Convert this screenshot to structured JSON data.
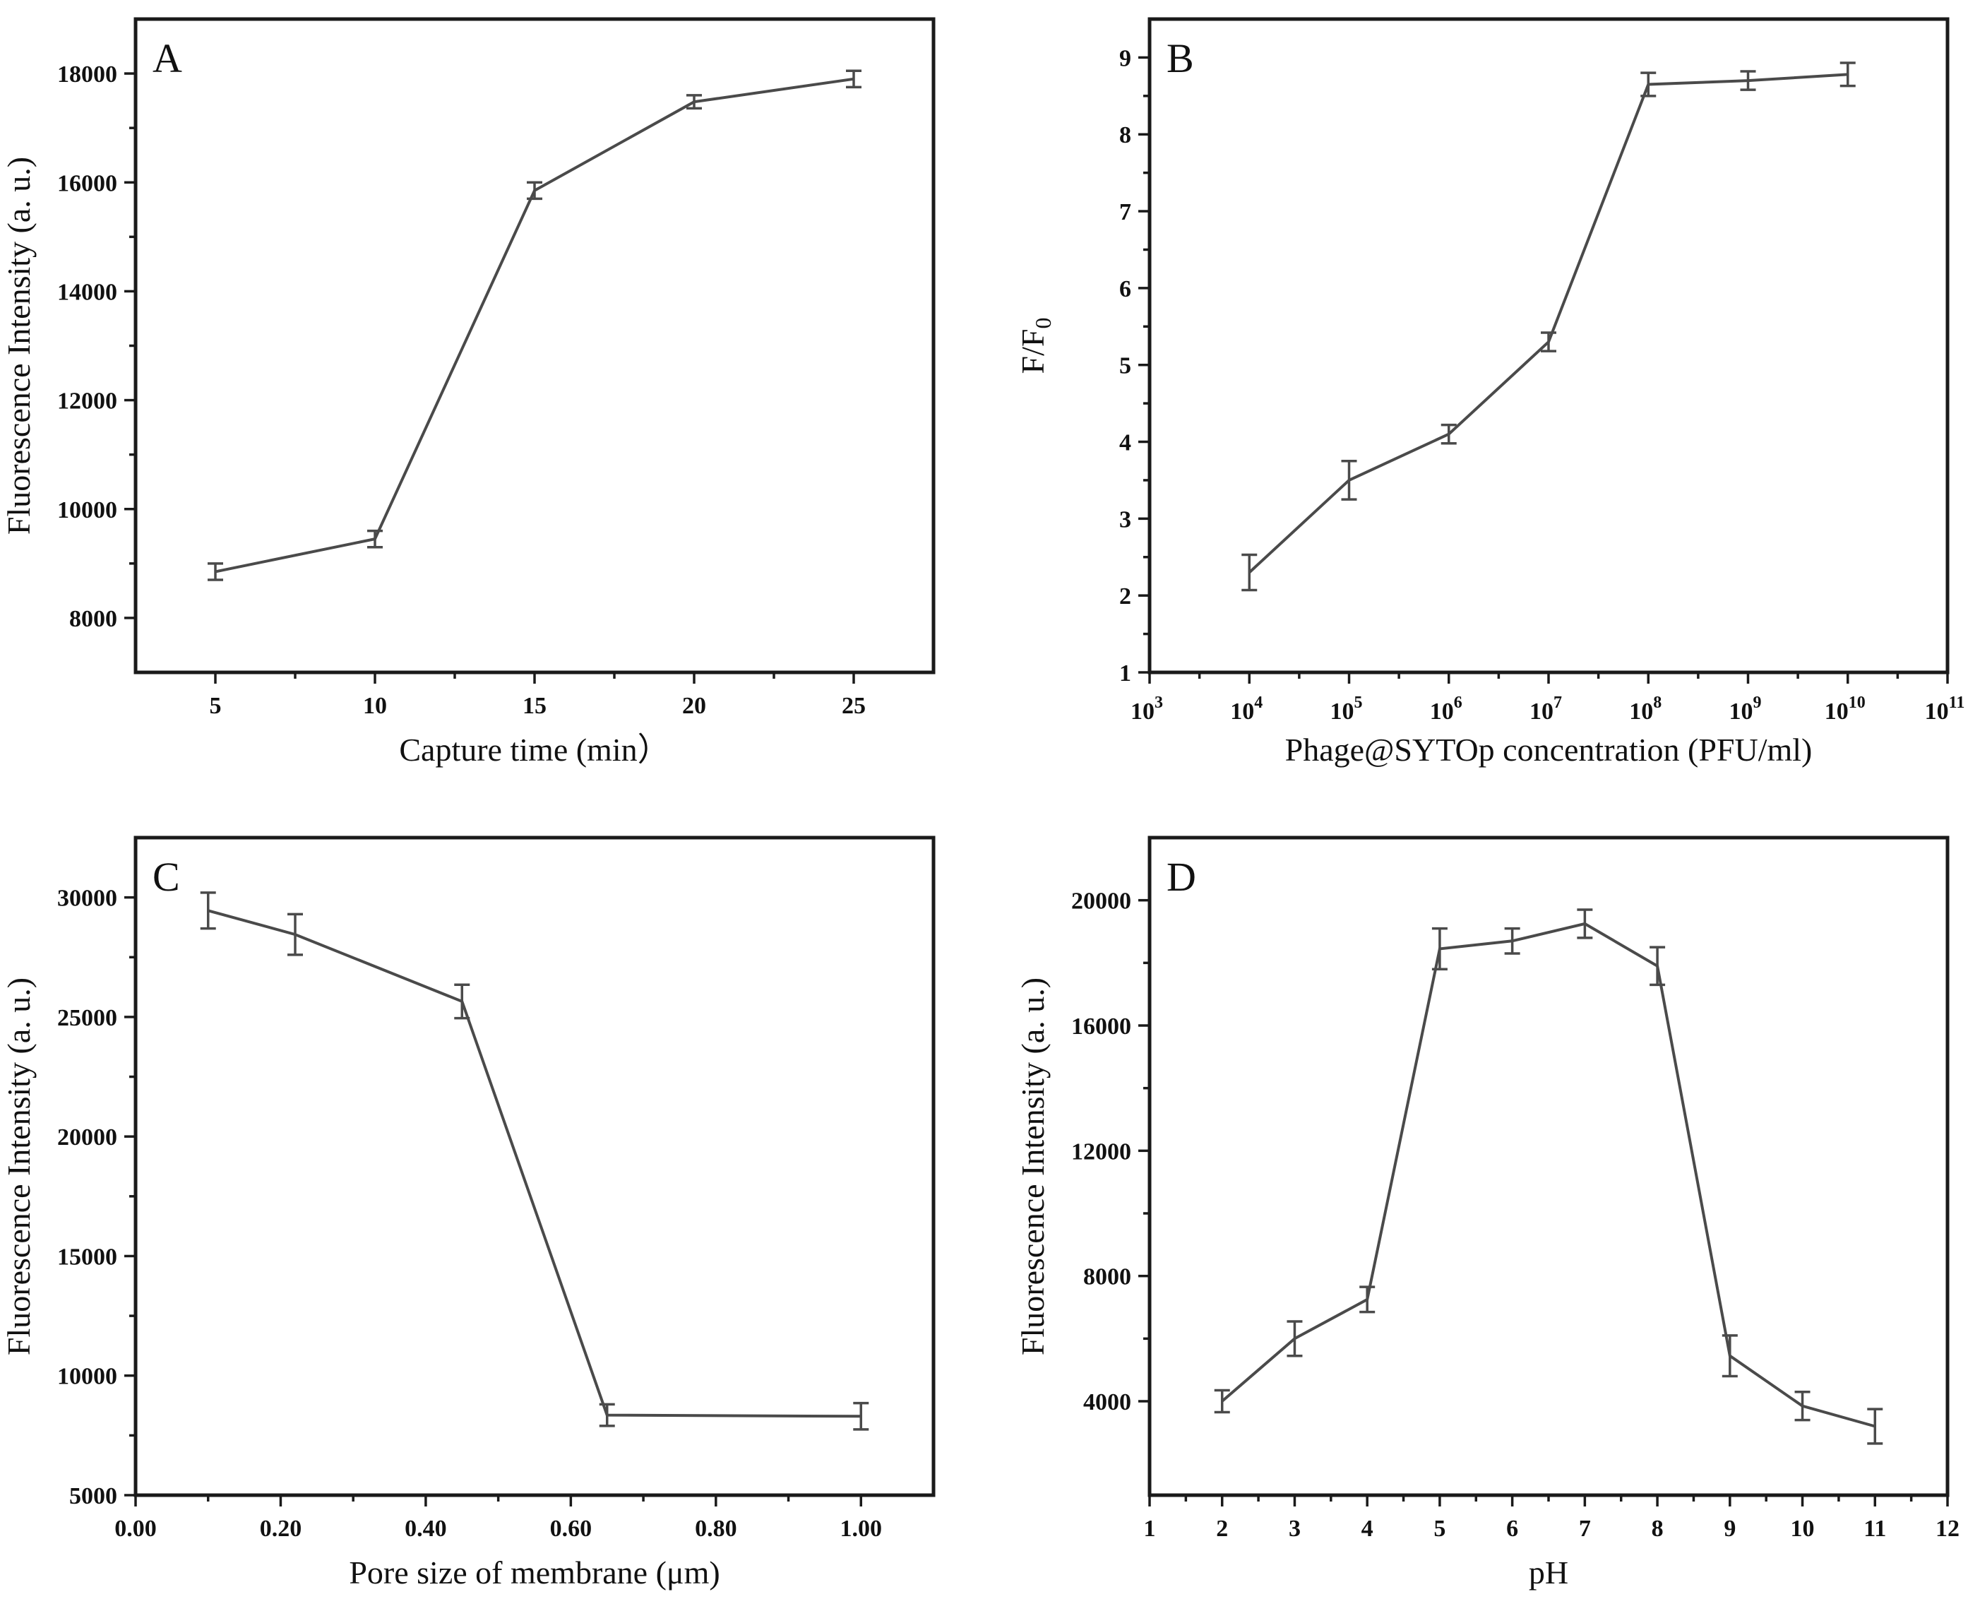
{
  "colors": {
    "line": "#4a4a4a",
    "axis": "#1a1a1a",
    "background": "#ffffff"
  },
  "chart_data": [
    {
      "type": "line",
      "panel": "A",
      "xlabel": "Capture time (min）",
      "ylabel": "Fluorescence Intensity (a. u.)",
      "xscale": "linear",
      "xlim": [
        2.5,
        27.5
      ],
      "ylim": [
        7000,
        19000
      ],
      "xticks": [
        5,
        10,
        15,
        20,
        25
      ],
      "xtick_labels": [
        "5",
        "10",
        "15",
        "20",
        "25"
      ],
      "yticks": [
        8000,
        10000,
        12000,
        14000,
        16000,
        18000
      ],
      "ytick_labels": [
        "8000",
        "10000",
        "12000",
        "14000",
        "16000",
        "18000"
      ],
      "series": [
        {
          "name": "intensity",
          "x": [
            5,
            10,
            15,
            20,
            25
          ],
          "values": [
            8850,
            9450,
            15850,
            17480,
            17900
          ],
          "errors": [
            150,
            150,
            150,
            120,
            150
          ]
        }
      ]
    },
    {
      "type": "line",
      "panel": "B",
      "xlabel": "Phage@SYTOp concentration (PFU/ml)",
      "ylabel": "F/F",
      "ylabel_sub": "0",
      "xscale": "log",
      "xlim": [
        3,
        11
      ],
      "ylim": [
        1,
        9.5
      ],
      "xticks": [
        3,
        4,
        5,
        6,
        7,
        8,
        9,
        10,
        11
      ],
      "xtick_labels": [
        "3",
        "4",
        "5",
        "6",
        "7",
        "8",
        "9",
        "10",
        "11"
      ],
      "xtick_base": "10",
      "yticks": [
        1,
        2,
        3,
        4,
        5,
        6,
        7,
        8,
        9
      ],
      "ytick_labels": [
        "1",
        "2",
        "3",
        "4",
        "5",
        "6",
        "7",
        "8",
        "9"
      ],
      "series": [
        {
          "name": "F/F0",
          "x": [
            4,
            5,
            6,
            7,
            8,
            9,
            10
          ],
          "values": [
            2.3,
            3.5,
            4.1,
            5.3,
            8.65,
            8.7,
            8.78
          ],
          "errors": [
            0.23,
            0.25,
            0.12,
            0.12,
            0.15,
            0.12,
            0.15
          ]
        }
      ]
    },
    {
      "type": "line",
      "panel": "C",
      "xlabel": "Pore size of membrane (μm)",
      "ylabel": "Fluorescence Intensity (a. u.)",
      "xscale": "linear",
      "xlim": [
        0.0,
        1.1
      ],
      "ylim": [
        5000,
        32500
      ],
      "xticks": [
        0.0,
        0.2,
        0.4,
        0.6,
        0.8,
        1.0
      ],
      "xtick_labels": [
        "0.00",
        "0.20",
        "0.40",
        "0.60",
        "0.80",
        "1.00"
      ],
      "yticks": [
        5000,
        10000,
        15000,
        20000,
        25000,
        30000
      ],
      "ytick_labels": [
        "5000",
        "10000",
        "15000",
        "20000",
        "25000",
        "30000"
      ],
      "series": [
        {
          "name": "intensity",
          "x": [
            0.1,
            0.22,
            0.45,
            0.65,
            1.0
          ],
          "values": [
            29450,
            28450,
            25650,
            8350,
            8300
          ],
          "errors": [
            750,
            850,
            700,
            450,
            550
          ]
        }
      ]
    },
    {
      "type": "line",
      "panel": "D",
      "xlabel": "pH",
      "ylabel": "Fluorescence Intensity (a. u.)",
      "xscale": "linear",
      "xlim": [
        1,
        12
      ],
      "ylim": [
        1000,
        22000
      ],
      "xticks": [
        1,
        2,
        3,
        4,
        5,
        6,
        7,
        8,
        9,
        10,
        11,
        12
      ],
      "xtick_labels": [
        "1",
        "2",
        "3",
        "4",
        "5",
        "6",
        "7",
        "8",
        "9",
        "10",
        "11",
        "12"
      ],
      "yticks": [
        4000,
        8000,
        12000,
        16000,
        20000
      ],
      "ytick_labels": [
        "4000",
        "8000",
        "12000",
        "16000",
        "20000"
      ],
      "series": [
        {
          "name": "intensity",
          "x": [
            2,
            3,
            4,
            5,
            6,
            7,
            8,
            9,
            10,
            11
          ],
          "values": [
            4000,
            6000,
            7250,
            18450,
            18700,
            19250,
            17900,
            5450,
            3850,
            3200
          ],
          "errors": [
            350,
            550,
            400,
            650,
            400,
            450,
            600,
            650,
            450,
            550
          ]
        }
      ]
    }
  ]
}
